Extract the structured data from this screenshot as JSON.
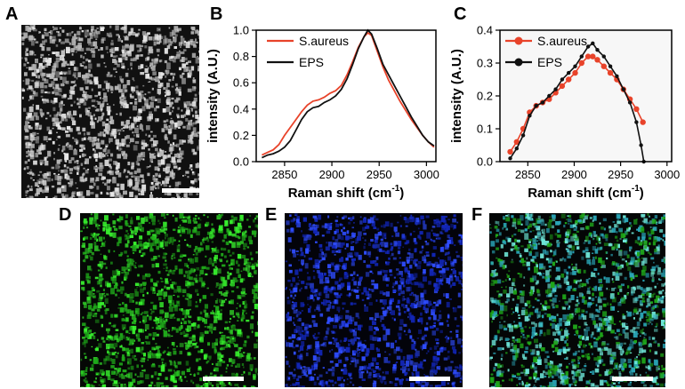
{
  "panels": {
    "a": "A",
    "b": "B",
    "c": "C",
    "d": "D",
    "e": "E",
    "f": "F"
  },
  "colors": {
    "saureus": "#e8432a",
    "eps": "#111111",
    "green_channel": "#22e01c",
    "blue_channel": "#1a3cff",
    "merge_teal": "#3fd6b0"
  },
  "images": {
    "A": {
      "description_kind": "grayscale raman map",
      "palette": [
        "#0a0a0a",
        "#b8b8b8",
        "#e8e8e8"
      ],
      "has_scalebar": true
    },
    "D": {
      "palette": [
        "#050805",
        "#1fa81a",
        "#38f02e"
      ],
      "has_scalebar": true
    },
    "E": {
      "palette": [
        "#03030a",
        "#1226b8",
        "#2f4dff"
      ],
      "has_scalebar": true
    },
    "F": {
      "palette": [
        "#040606",
        "#1fa81a",
        "#2aa6b8",
        "#6ee6d8"
      ],
      "has_scalebar": true
    }
  },
  "chart_data": [
    {
      "id": "B",
      "type": "line",
      "xlabel": "Raman shift (cm",
      "xlabel_sup": "-1",
      "xlabel_end": ")",
      "ylabel": "intensity (A.U.)",
      "xlim": [
        2820,
        3010
      ],
      "ylim": [
        0.0,
        1.0
      ],
      "xticks": [
        2850,
        2900,
        2950,
        3000
      ],
      "yticks": [
        0.0,
        0.2,
        0.4,
        0.6,
        0.8,
        1.0
      ],
      "ytick_labels": [
        "0.0",
        "0.2",
        "0.4",
        "0.6",
        "0.8",
        "1.0"
      ],
      "legend": [
        "S.aureus",
        "EPS"
      ],
      "series": [
        {
          "name": "S.aureus",
          "color": "#e8432a",
          "x": [
            2826,
            2832,
            2838,
            2844,
            2850,
            2856,
            2862,
            2868,
            2874,
            2880,
            2886,
            2892,
            2898,
            2904,
            2910,
            2916,
            2922,
            2928,
            2934,
            2938,
            2942,
            2948,
            2954,
            2960,
            2966,
            2972,
            2978,
            2984,
            2990,
            2996,
            3002,
            3008
          ],
          "y": [
            0.05,
            0.07,
            0.09,
            0.13,
            0.2,
            0.26,
            0.32,
            0.38,
            0.43,
            0.46,
            0.47,
            0.49,
            0.52,
            0.54,
            0.58,
            0.66,
            0.76,
            0.87,
            0.95,
            0.98,
            0.96,
            0.84,
            0.72,
            0.62,
            0.54,
            0.46,
            0.39,
            0.32,
            0.26,
            0.2,
            0.15,
            0.11
          ]
        },
        {
          "name": "EPS",
          "color": "#111111",
          "x": [
            2826,
            2832,
            2838,
            2844,
            2850,
            2856,
            2862,
            2868,
            2874,
            2880,
            2886,
            2892,
            2898,
            2904,
            2910,
            2916,
            2922,
            2928,
            2934,
            2938,
            2942,
            2948,
            2954,
            2960,
            2966,
            2972,
            2978,
            2984,
            2990,
            2996,
            3002,
            3008
          ],
          "y": [
            0.03,
            0.05,
            0.06,
            0.08,
            0.11,
            0.16,
            0.24,
            0.32,
            0.38,
            0.41,
            0.42,
            0.45,
            0.47,
            0.5,
            0.55,
            0.63,
            0.74,
            0.86,
            0.95,
            1.0,
            0.97,
            0.86,
            0.74,
            0.66,
            0.58,
            0.5,
            0.42,
            0.34,
            0.27,
            0.2,
            0.15,
            0.12
          ]
        }
      ]
    },
    {
      "id": "C",
      "type": "line",
      "xlabel": "Raman shift (cm",
      "xlabel_sup": "-1",
      "xlabel_end": ")",
      "ylabel": "intensity (A.U.)",
      "xlim": [
        2820,
        3005
      ],
      "ylim": [
        0.0,
        0.4
      ],
      "xticks": [
        2850,
        2900,
        2950,
        3000
      ],
      "yticks": [
        0.0,
        0.1,
        0.2,
        0.3,
        0.4
      ],
      "ytick_labels": [
        "0.0",
        "0.1",
        "0.2",
        "0.3",
        "0.4"
      ],
      "legend": [
        "S.aureus",
        "EPS"
      ],
      "series": [
        {
          "name": "S.aureus",
          "color": "#e8432a",
          "x": [
            2831,
            2838,
            2845,
            2852,
            2859,
            2866,
            2873,
            2880,
            2887,
            2894,
            2901,
            2908,
            2915,
            2920,
            2925,
            2932,
            2939,
            2946,
            2953,
            2960,
            2967,
            2974
          ],
          "y": [
            0.03,
            0.06,
            0.1,
            0.15,
            0.17,
            0.18,
            0.19,
            0.21,
            0.23,
            0.25,
            0.27,
            0.3,
            0.32,
            0.32,
            0.31,
            0.29,
            0.27,
            0.25,
            0.22,
            0.19,
            0.16,
            0.12
          ]
        },
        {
          "name": "EPS",
          "color": "#111111",
          "x": [
            2831,
            2838,
            2845,
            2852,
            2859,
            2866,
            2873,
            2880,
            2887,
            2894,
            2901,
            2908,
            2915,
            2920,
            2925,
            2932,
            2939,
            2946,
            2953,
            2960,
            2967,
            2972,
            2975
          ],
          "y": [
            0.01,
            0.04,
            0.08,
            0.14,
            0.17,
            0.18,
            0.2,
            0.22,
            0.25,
            0.27,
            0.29,
            0.32,
            0.35,
            0.36,
            0.34,
            0.32,
            0.29,
            0.26,
            0.22,
            0.18,
            0.12,
            0.05,
            0.0
          ]
        }
      ]
    }
  ]
}
